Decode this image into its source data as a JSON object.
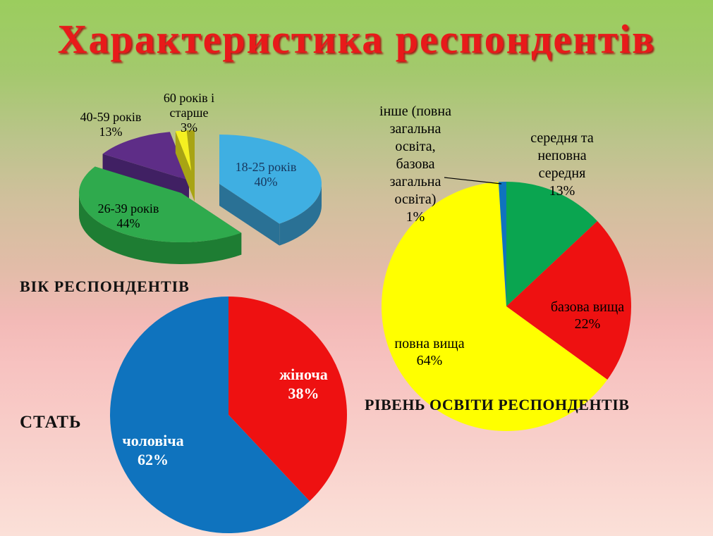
{
  "slide": {
    "title": "Характеристика респондентів",
    "title_color": "#e81a1a"
  },
  "chart_data": [
    {
      "id": "age",
      "type": "pie",
      "variant": "3d-exploded",
      "title": "ВІК РЕСПОНДЕНТІВ",
      "unit": "%",
      "start_angle": "top",
      "direction": "clockwise",
      "slices": [
        {
          "label": "18-25 років",
          "value": 40,
          "color": "#3fafe2",
          "side_color": "#2a7195",
          "label_color": "#17375e"
        },
        {
          "label": "26-39 років",
          "value": 44,
          "color": "#2faa4d",
          "side_color": "#1e7d33",
          "label_color": "#000000"
        },
        {
          "label": "40-59 років",
          "value": 13,
          "color": "#5e2d87",
          "side_color": "#402063",
          "label_color": "#000000"
        },
        {
          "label": "60 років і старше",
          "value": 3,
          "color": "#f4f021",
          "side_color": "#a8a414",
          "label_color": "#000000"
        }
      ]
    },
    {
      "id": "gender",
      "type": "pie",
      "title": "СТАТЬ",
      "unit": "%",
      "start_angle": "top",
      "direction": "clockwise",
      "slices": [
        {
          "label": "жіноча",
          "value": 38,
          "color": "#ee1111",
          "label_color": "#ffffff"
        },
        {
          "label": "чоловіча",
          "value": 62,
          "color": "#0f73be",
          "label_color": "#ffffff"
        }
      ]
    },
    {
      "id": "education",
      "type": "pie",
      "title": "РІВЕНЬ ОСВІТИ РЕСПОНДЕНТІВ",
      "unit": "%",
      "start_angle": "top",
      "direction": "clockwise",
      "slices": [
        {
          "label": "середня та неповна середня",
          "value": 13,
          "color": "#0aa550",
          "label_color": "#000000"
        },
        {
          "label": "базова вища",
          "value": 22,
          "color": "#ee1111",
          "label_color": "#000000"
        },
        {
          "label": "повна вища",
          "value": 64,
          "color": "#ffff00",
          "label_color": "#000000"
        },
        {
          "label": "інше (повна загальна освіта, базова загальна освіта)",
          "value": 1,
          "color": "#0f73be",
          "label_color": "#000000"
        }
      ]
    }
  ],
  "labels": {
    "age_title": "ВІК РЕСПОНДЕНТІВ",
    "age_18_25": "18-25 років\n40%",
    "age_26_39": "26-39 років\n44%",
    "age_40_59": "40-59 років\n13%",
    "age_60_plus": "60 років і\nстарше\n3%",
    "gender_title": "СТАТЬ",
    "gender_female": "жіноча\n38%",
    "gender_male": "чоловіча\n62%",
    "edu_title": "РІВЕНЬ ОСВІТИ РЕСПОНДЕНТІВ",
    "edu_secondary": "середня та\nнеповна\nсередня\n13%",
    "edu_base_higher": "базова вища\n22%",
    "edu_full_higher": "повна вища\n64%",
    "edu_other": "інше (повна\nзагальна\nосвіта,\nбазова\nзагальна\nосвіта)\n1%"
  }
}
